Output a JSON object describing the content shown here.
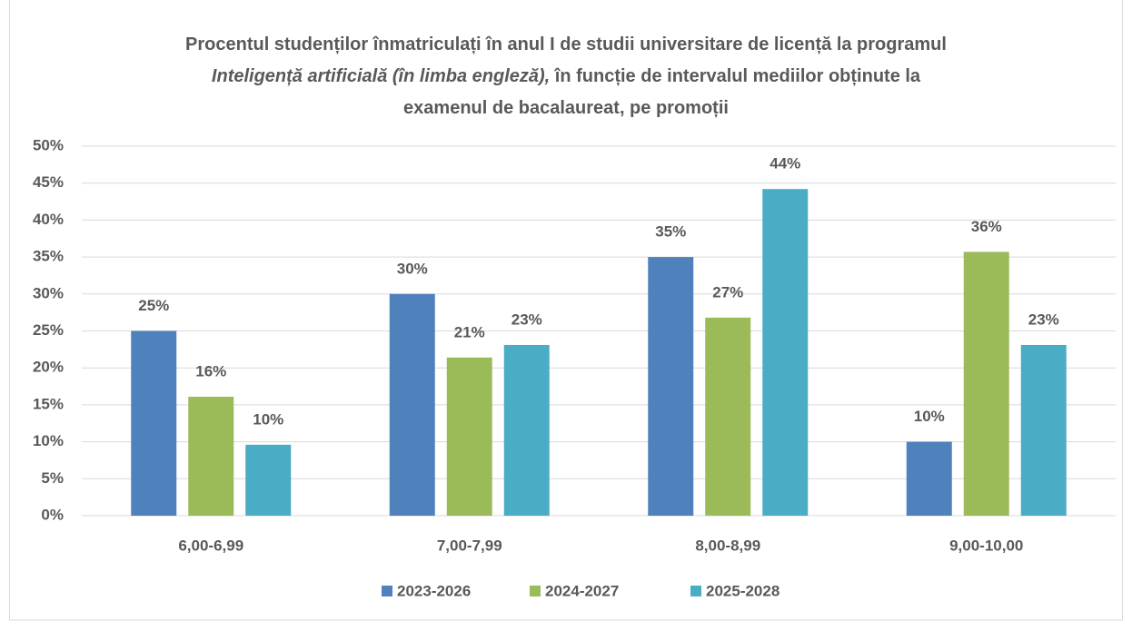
{
  "chart_data": {
    "type": "bar",
    "title": [
      [
        {
          "text": "Procentul studenților înmatriculați în anul I de studii universitare de licență la programul",
          "italic": false
        }
      ],
      [
        {
          "text": "Inteligență artificială (în limba engleză),",
          "italic": true
        },
        {
          "text": " în funcție de intervalul mediilor obținute la",
          "italic": false
        }
      ],
      [
        {
          "text": "examenul de bacalaureat, pe promoții",
          "italic": false
        }
      ]
    ],
    "categories": [
      "6,00-6,99",
      "7,00-7,99",
      "8,00-8,99",
      "9,00-10,00"
    ],
    "series": [
      {
        "name": "2023-2026",
        "color": "#4f81bd",
        "values": [
          25,
          30,
          35,
          10
        ],
        "value_labels": [
          "25%",
          "30%",
          "35%",
          "10%"
        ]
      },
      {
        "name": "2024-2027",
        "color": "#9bbb59",
        "values": [
          16.1,
          21.4,
          26.8,
          35.7
        ],
        "value_labels": [
          "16%",
          "21%",
          "27%",
          "36%"
        ]
      },
      {
        "name": "2025-2028",
        "color": "#4bacc6",
        "values": [
          9.6,
          23.1,
          44.2,
          23.1
        ],
        "value_labels": [
          "10%",
          "23%",
          "44%",
          "23%"
        ]
      }
    ],
    "ylim": [
      0,
      50
    ],
    "yticks": [
      {
        "value": 0,
        "label": "0%"
      },
      {
        "value": 5,
        "label": "5%"
      },
      {
        "value": 10,
        "label": "10%"
      },
      {
        "value": 15,
        "label": "15%"
      },
      {
        "value": 20,
        "label": "20%"
      },
      {
        "value": 25,
        "label": "25%"
      },
      {
        "value": 30,
        "label": "30%"
      },
      {
        "value": 35,
        "label": "35%"
      },
      {
        "value": 40,
        "label": "40%"
      },
      {
        "value": 45,
        "label": "45%"
      },
      {
        "value": 50,
        "label": "50%"
      }
    ],
    "grid": true,
    "legend": "bottom"
  }
}
